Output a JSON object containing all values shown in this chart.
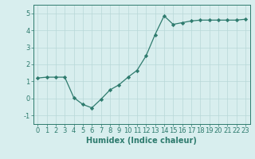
{
  "x": [
    0,
    1,
    2,
    3,
    4,
    5,
    6,
    7,
    8,
    9,
    10,
    11,
    12,
    13,
    14,
    15,
    16,
    17,
    18,
    19,
    20,
    21,
    22,
    23
  ],
  "y": [
    1.2,
    1.25,
    1.25,
    1.25,
    0.05,
    -0.35,
    -0.55,
    -0.05,
    0.5,
    0.8,
    1.25,
    1.65,
    2.5,
    3.75,
    4.85,
    4.35,
    4.45,
    4.55,
    4.6,
    4.6,
    4.6,
    4.6,
    4.6,
    4.65
  ],
  "xlabel": "Humidex (Indice chaleur)",
  "ylim": [
    -1.5,
    5.5
  ],
  "xlim": [
    -0.5,
    23.5
  ],
  "yticks": [
    -1,
    0,
    1,
    2,
    3,
    4,
    5
  ],
  "xticks": [
    0,
    1,
    2,
    3,
    4,
    5,
    6,
    7,
    8,
    9,
    10,
    11,
    12,
    13,
    14,
    15,
    16,
    17,
    18,
    19,
    20,
    21,
    22,
    23
  ],
  "xtick_labels": [
    "0",
    "1",
    "2",
    "3",
    "4",
    "5",
    "6",
    "7",
    "8",
    "9",
    "10",
    "11",
    "12",
    "13",
    "14",
    "15",
    "16",
    "17",
    "18",
    "19",
    "20",
    "21",
    "22",
    "23"
  ],
  "line_color": "#2e7b6e",
  "marker": "D",
  "marker_size": 2.2,
  "bg_color": "#d8eeee",
  "grid_color": "#b8d8d8",
  "tick_color": "#2e7b6e",
  "label_color": "#2e7b6e",
  "xlabel_fontsize": 7,
  "tick_fontsize": 6,
  "linewidth": 0.9
}
